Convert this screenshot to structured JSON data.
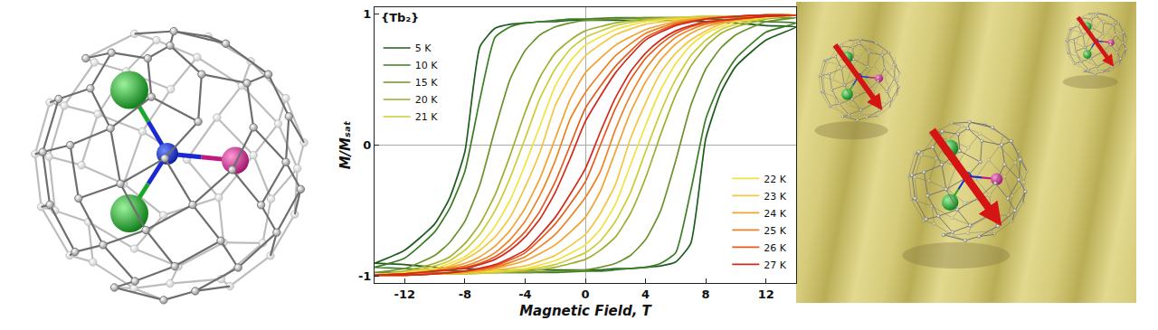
{
  "chart_data": {
    "type": "line",
    "title": "{Tb₂}",
    "x_label": "Magnetic Field, T",
    "y_label": "M/Mₛₐₜ",
    "x": [
      14,
      12,
      10,
      8,
      6,
      4,
      2,
      0,
      -1,
      -2,
      -3,
      -4,
      -5,
      -6,
      -7,
      -8,
      -9,
      -10,
      -12,
      -14,
      -14,
      -12,
      -10,
      -8,
      -6,
      -4,
      -2,
      0,
      1,
      2,
      3,
      4,
      5,
      6,
      7,
      8,
      9,
      10,
      12,
      14
    ],
    "xlim": [
      -14,
      14
    ],
    "xticks": [
      -12,
      -8,
      -4,
      0,
      4,
      8,
      12
    ],
    "ylim": [
      -1.05,
      1.05
    ],
    "yticks": [
      -1,
      0,
      1
    ],
    "grid": false,
    "series": [
      {
        "name": "5 K",
        "color": "#1f5c1f",
        "legend": "upper left",
        "values": [
          0.9,
          0.91,
          0.93,
          0.94,
          0.95,
          0.95,
          0.95,
          0.95,
          0.95,
          0.94,
          0.94,
          0.93,
          0.92,
          0.89,
          0.75,
          -0.05,
          -0.4,
          -0.6,
          -0.8,
          -0.9,
          -0.9,
          -0.91,
          -0.93,
          -0.94,
          -0.95,
          -0.95,
          -0.95,
          -0.95,
          -0.95,
          -0.94,
          -0.94,
          -0.93,
          -0.92,
          -0.89,
          -0.75,
          0.05,
          0.4,
          0.6,
          0.8,
          0.9
        ]
      },
      {
        "name": "10 K",
        "color": "#3b7d24",
        "legend": "upper left",
        "values": [
          0.93,
          0.94,
          0.95,
          0.96,
          0.97,
          0.97,
          0.97,
          0.96,
          0.96,
          0.95,
          0.94,
          0.93,
          0.9,
          0.82,
          0.35,
          -0.2,
          -0.48,
          -0.66,
          -0.86,
          -0.93,
          -0.93,
          -0.94,
          -0.95,
          -0.96,
          -0.97,
          -0.97,
          -0.97,
          -0.96,
          -0.96,
          -0.95,
          -0.94,
          -0.93,
          -0.9,
          -0.82,
          -0.35,
          0.2,
          0.48,
          0.66,
          0.86,
          0.93
        ]
      },
      {
        "name": "15 K",
        "color": "#6b922c",
        "legend": "upper left",
        "values": [
          0.97,
          0.97,
          0.97,
          0.97,
          0.97,
          0.97,
          0.96,
          0.95,
          0.93,
          0.9,
          0.84,
          0.72,
          0.5,
          0.12,
          -0.3,
          -0.58,
          -0.74,
          -0.84,
          -0.94,
          -0.97,
          -0.97,
          -0.97,
          -0.97,
          -0.97,
          -0.97,
          -0.97,
          -0.96,
          -0.95,
          -0.93,
          -0.9,
          -0.84,
          -0.72,
          -0.5,
          -0.12,
          0.3,
          0.58,
          0.74,
          0.84,
          0.94,
          0.97
        ]
      },
      {
        "name": "20 K",
        "color": "#9fae30",
        "legend": "upper left",
        "values": [
          0.99,
          0.99,
          0.98,
          0.98,
          0.97,
          0.96,
          0.93,
          0.87,
          0.8,
          0.7,
          0.52,
          0.25,
          -0.08,
          -0.38,
          -0.6,
          -0.75,
          -0.85,
          -0.9,
          -0.96,
          -0.99,
          -0.99,
          -0.99,
          -0.98,
          -0.98,
          -0.97,
          -0.96,
          -0.93,
          -0.87,
          -0.8,
          -0.7,
          -0.52,
          -0.25,
          0.08,
          0.38,
          0.6,
          0.75,
          0.85,
          0.9,
          0.96,
          0.99
        ]
      },
      {
        "name": "21 K",
        "color": "#cccc36",
        "legend": "upper left",
        "values": [
          0.99,
          0.99,
          0.98,
          0.98,
          0.97,
          0.95,
          0.91,
          0.82,
          0.73,
          0.58,
          0.36,
          0.05,
          -0.25,
          -0.5,
          -0.68,
          -0.8,
          -0.88,
          -0.92,
          -0.97,
          -0.99,
          -0.99,
          -0.99,
          -0.98,
          -0.98,
          -0.97,
          -0.95,
          -0.91,
          -0.82,
          -0.73,
          -0.58,
          -0.36,
          -0.05,
          0.25,
          0.5,
          0.68,
          0.8,
          0.88,
          0.92,
          0.97,
          0.99
        ]
      },
      {
        "name": "22 K",
        "color": "#f2e23c",
        "legend": "lower right",
        "values": [
          0.99,
          0.99,
          0.98,
          0.97,
          0.96,
          0.94,
          0.88,
          0.76,
          0.64,
          0.45,
          0.15,
          -0.15,
          -0.42,
          -0.62,
          -0.76,
          -0.85,
          -0.9,
          -0.94,
          -0.97,
          -0.99,
          -0.99,
          -0.99,
          -0.98,
          -0.97,
          -0.96,
          -0.94,
          -0.88,
          -0.76,
          -0.64,
          -0.45,
          -0.15,
          0.15,
          0.42,
          0.62,
          0.76,
          0.85,
          0.9,
          0.94,
          0.97,
          0.99
        ]
      },
      {
        "name": "23 K",
        "color": "#f5c540",
        "legend": "lower right",
        "values": [
          0.99,
          0.99,
          0.98,
          0.97,
          0.95,
          0.92,
          0.84,
          0.68,
          0.52,
          0.3,
          -0.05,
          -0.32,
          -0.55,
          -0.7,
          -0.8,
          -0.87,
          -0.92,
          -0.95,
          -0.98,
          -0.99,
          -0.99,
          -0.99,
          -0.98,
          -0.97,
          -0.95,
          -0.92,
          -0.84,
          -0.68,
          -0.52,
          -0.3,
          0.05,
          0.32,
          0.55,
          0.7,
          0.8,
          0.87,
          0.92,
          0.95,
          0.98,
          0.99
        ]
      },
      {
        "name": "24 K",
        "color": "#f2a232",
        "legend": "lower right",
        "values": [
          0.99,
          0.99,
          0.98,
          0.97,
          0.94,
          0.88,
          0.76,
          0.55,
          0.35,
          0.05,
          -0.25,
          -0.48,
          -0.65,
          -0.77,
          -0.85,
          -0.9,
          -0.93,
          -0.95,
          -0.98,
          -0.99,
          -0.99,
          -0.99,
          -0.98,
          -0.97,
          -0.94,
          -0.88,
          -0.76,
          -0.55,
          -0.35,
          -0.05,
          0.25,
          0.48,
          0.65,
          0.77,
          0.85,
          0.9,
          0.93,
          0.95,
          0.98,
          0.99
        ]
      },
      {
        "name": "25 K",
        "color": "#ee8124",
        "legend": "lower right",
        "values": [
          0.99,
          0.99,
          0.98,
          0.96,
          0.93,
          0.85,
          0.68,
          0.4,
          0.2,
          -0.12,
          -0.38,
          -0.58,
          -0.72,
          -0.82,
          -0.88,
          -0.92,
          -0.94,
          -0.96,
          -0.98,
          -0.99,
          -0.99,
          -0.99,
          -0.98,
          -0.96,
          -0.93,
          -0.85,
          -0.68,
          -0.4,
          -0.2,
          0.12,
          0.38,
          0.58,
          0.72,
          0.82,
          0.88,
          0.92,
          0.94,
          0.96,
          0.98,
          0.99
        ]
      },
      {
        "name": "26 K",
        "color": "#e65a1c",
        "legend": "lower right",
        "values": [
          0.99,
          0.99,
          0.98,
          0.96,
          0.92,
          0.82,
          0.6,
          0.28,
          0,
          -0.28,
          -0.5,
          -0.66,
          -0.77,
          -0.85,
          -0.9,
          -0.93,
          -0.95,
          -0.96,
          -0.98,
          -0.99,
          -0.99,
          -0.99,
          -0.98,
          -0.96,
          -0.92,
          -0.82,
          -0.6,
          -0.28,
          0,
          0.28,
          0.5,
          0.66,
          0.77,
          0.85,
          0.9,
          0.93,
          0.95,
          0.96,
          0.98,
          0.99
        ]
      },
      {
        "name": "27 K",
        "color": "#d22a1a",
        "legend": "lower right",
        "values": [
          0.99,
          0.99,
          0.98,
          0.96,
          0.91,
          0.8,
          0.55,
          0.18,
          -0.1,
          -0.36,
          -0.56,
          -0.7,
          -0.8,
          -0.87,
          -0.91,
          -0.94,
          -0.95,
          -0.96,
          -0.98,
          -0.99,
          -0.99,
          -0.99,
          -0.98,
          -0.96,
          -0.91,
          -0.8,
          -0.55,
          -0.18,
          0.1,
          0.36,
          0.56,
          0.7,
          0.8,
          0.87,
          0.91,
          0.94,
          0.95,
          0.96,
          0.98,
          0.99
        ]
      }
    ]
  }
}
